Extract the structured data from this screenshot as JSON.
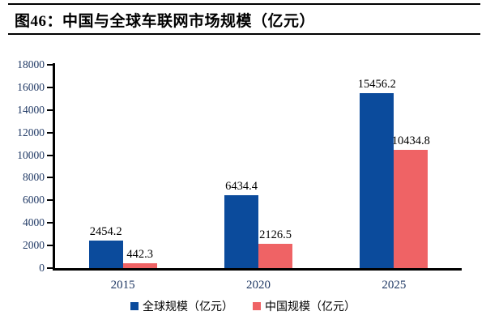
{
  "header": {
    "title": "图46：中国与全球车联网市场规模（亿元）"
  },
  "chart_data": {
    "type": "bar",
    "title": "图46：中国与全球车联网市场规模（亿元）",
    "categories": [
      "2015",
      "2020",
      "2025"
    ],
    "series": [
      {
        "name": "全球规模（亿元）",
        "color": "#0B4B9C",
        "values": [
          2454.2,
          6434.4,
          15456.2
        ],
        "labels": [
          "2454.2",
          "6434.4",
          "15456.2"
        ]
      },
      {
        "name": "中国规模（亿元）",
        "color": "#EF6365",
        "values": [
          442.3,
          2126.5,
          10434.8
        ],
        "labels": [
          "442.3",
          "2126.5",
          "10434.8"
        ]
      }
    ],
    "y_axis": {
      "min": 0,
      "max": 18000,
      "step": 2000,
      "ticks": [
        0,
        2000,
        4000,
        6000,
        8000,
        10000,
        12000,
        14000,
        16000,
        18000
      ]
    },
    "grid": false,
    "value_labels": true,
    "legend_position": "bottom"
  },
  "colors": {
    "axis": "#000000",
    "tick_label": "#1F3864",
    "value_label": "#000000",
    "rule": "#000000",
    "background": "#ffffff"
  }
}
